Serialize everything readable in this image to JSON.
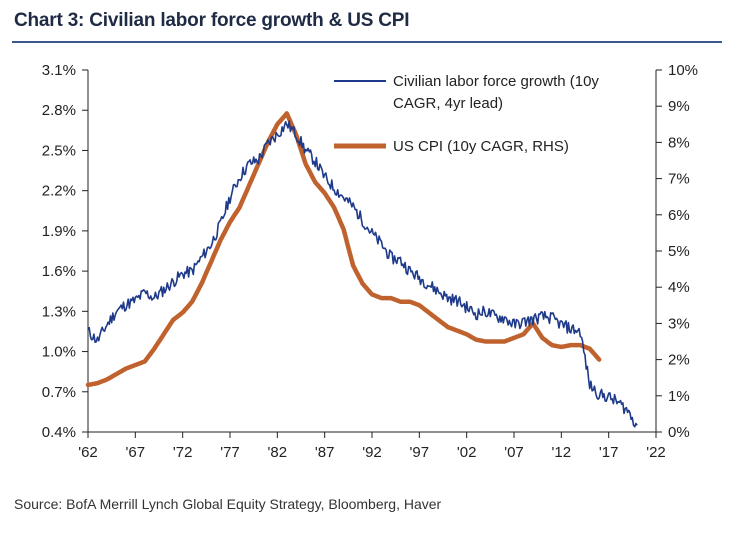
{
  "title": "Chart 3: Civilian labor force growth & US CPI",
  "source": "Source: BofA Merrill Lynch Global Equity Strategy, Bloomberg, Haver",
  "colors": {
    "labor": "#1f3a8a",
    "cpi": "#c0622e",
    "rule": "#3a5a8c"
  },
  "chart_data": {
    "type": "line",
    "x_tick_labels": [
      "'62",
      "'67",
      "'72",
      "'77",
      "'82",
      "'87",
      "'92",
      "'97",
      "'02",
      "'07",
      "'12",
      "'17",
      "'22"
    ],
    "x_ticks": [
      1962,
      1967,
      1972,
      1977,
      1982,
      1987,
      1992,
      1997,
      2002,
      2007,
      2012,
      2017,
      2022
    ],
    "xlim": [
      1962,
      2022
    ],
    "left_axis": {
      "ticks": [
        "0.4%",
        "0.7%",
        "1.0%",
        "1.3%",
        "1.6%",
        "1.9%",
        "2.2%",
        "2.5%",
        "2.8%",
        "3.1%"
      ],
      "ylim": [
        0.4,
        3.1
      ]
    },
    "right_axis": {
      "ticks": [
        "0%",
        "1%",
        "2%",
        "3%",
        "4%",
        "5%",
        "6%",
        "7%",
        "8%",
        "9%",
        "10%"
      ],
      "ylim": [
        0,
        10
      ]
    },
    "grid": false,
    "legend_position": "top-right",
    "series": [
      {
        "name": "Civilian labor force growth (10y CAGR, 4yr lead)",
        "axis": "left",
        "x": [
          1962,
          1963,
          1964,
          1965,
          1966,
          1967,
          1968,
          1969,
          1970,
          1971,
          1972,
          1973,
          1974,
          1975,
          1976,
          1977,
          1978,
          1979,
          1980,
          1981,
          1982,
          1983,
          1984,
          1985,
          1986,
          1987,
          1988,
          1989,
          1990,
          1991,
          1992,
          1993,
          1994,
          1995,
          1996,
          1997,
          1998,
          1999,
          2000,
          2001,
          2002,
          2003,
          2004,
          2005,
          2006,
          2007,
          2008,
          2009,
          2010,
          2011,
          2012,
          2013,
          2014,
          2015,
          2016,
          2017,
          2018,
          2019,
          2020
        ],
        "y": [
          1.15,
          1.08,
          1.2,
          1.3,
          1.35,
          1.38,
          1.44,
          1.4,
          1.46,
          1.52,
          1.58,
          1.6,
          1.7,
          1.8,
          1.95,
          2.15,
          2.3,
          2.4,
          2.43,
          2.55,
          2.62,
          2.7,
          2.62,
          2.5,
          2.42,
          2.3,
          2.22,
          2.15,
          2.08,
          1.98,
          1.88,
          1.8,
          1.7,
          1.68,
          1.6,
          1.55,
          1.5,
          1.45,
          1.4,
          1.38,
          1.33,
          1.28,
          1.3,
          1.26,
          1.25,
          1.2,
          1.22,
          1.24,
          1.26,
          1.25,
          1.2,
          1.17,
          1.15,
          0.75,
          0.68,
          0.66,
          0.62,
          0.56,
          0.45
        ]
      },
      {
        "name": "US CPI (10y CAGR, RHS)",
        "axis": "right",
        "x": [
          1962,
          1963,
          1964,
          1965,
          1966,
          1967,
          1968,
          1969,
          1970,
          1971,
          1972,
          1973,
          1974,
          1975,
          1976,
          1977,
          1978,
          1979,
          1980,
          1981,
          1982,
          1983,
          1984,
          1985,
          1986,
          1987,
          1988,
          1989,
          1990,
          1991,
          1992,
          1993,
          1994,
          1995,
          1996,
          1997,
          1998,
          1999,
          2000,
          2001,
          2002,
          2003,
          2004,
          2005,
          2006,
          2007,
          2008,
          2009,
          2010,
          2011,
          2012,
          2013,
          2014,
          2015,
          2016
        ],
        "y": [
          1.3,
          1.35,
          1.45,
          1.6,
          1.75,
          1.85,
          1.95,
          2.3,
          2.7,
          3.1,
          3.3,
          3.6,
          4.1,
          4.7,
          5.3,
          5.8,
          6.2,
          6.8,
          7.4,
          8.0,
          8.5,
          8.8,
          8.2,
          7.4,
          6.9,
          6.6,
          6.2,
          5.6,
          4.6,
          4.1,
          3.8,
          3.7,
          3.7,
          3.6,
          3.6,
          3.5,
          3.3,
          3.1,
          2.9,
          2.8,
          2.7,
          2.55,
          2.5,
          2.5,
          2.5,
          2.6,
          2.7,
          3.0,
          2.6,
          2.4,
          2.35,
          2.4,
          2.4,
          2.3,
          2.0
        ]
      }
    ]
  }
}
